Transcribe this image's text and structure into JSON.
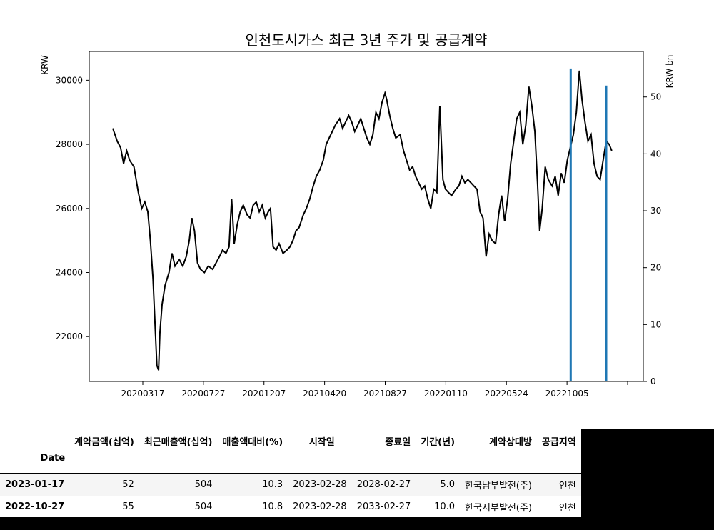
{
  "chart_data": {
    "type": "line",
    "title": "인천도시가스 최근 3년 주가 및 공급계약",
    "ylabel_left": "KRW",
    "ylabel_right": "KRW bn",
    "x_start": "20191202",
    "x_end": "20230306",
    "x_tick_labels": [
      "20200317",
      "20200727",
      "20201207",
      "20210420",
      "20210827",
      "20220110",
      "20220524",
      "20221005",
      ""
    ],
    "y_left_ticks": [
      "22000",
      "24000",
      "26000",
      "28000",
      "30000"
    ],
    "y_left_range": [
      20600,
      30900
    ],
    "y_right_ticks": [
      "0",
      "10",
      "20",
      "30",
      "40",
      "50"
    ],
    "y_right_range": [
      0,
      58
    ],
    "series": [
      {
        "color": "#000000",
        "axis": "left",
        "points": [
          [
            "20191202",
            28500
          ],
          [
            "20191212",
            28100
          ],
          [
            "20191220",
            27900
          ],
          [
            "20191227",
            27400
          ],
          [
            "20200103",
            27800
          ],
          [
            "20200110",
            27500
          ],
          [
            "20200120",
            27300
          ],
          [
            "20200130",
            26500
          ],
          [
            "20200207",
            26000
          ],
          [
            "20200214",
            26200
          ],
          [
            "20200221",
            25900
          ],
          [
            "20200227",
            25000
          ],
          [
            "20200304",
            23800
          ],
          [
            "20200310",
            22000
          ],
          [
            "20200313",
            21100
          ],
          [
            "20200317",
            20950
          ],
          [
            "20200320",
            22100
          ],
          [
            "20200325",
            23000
          ],
          [
            "20200401",
            23600
          ],
          [
            "20200410",
            24000
          ],
          [
            "20200417",
            24600
          ],
          [
            "20200424",
            24200
          ],
          [
            "20200504",
            24400
          ],
          [
            "20200512",
            24200
          ],
          [
            "20200520",
            24500
          ],
          [
            "20200527",
            25000
          ],
          [
            "20200602",
            25700
          ],
          [
            "20200608",
            25300
          ],
          [
            "20200615",
            24300
          ],
          [
            "20200622",
            24100
          ],
          [
            "20200701",
            24000
          ],
          [
            "20200710",
            24200
          ],
          [
            "20200720",
            24100
          ],
          [
            "20200728",
            24300
          ],
          [
            "20200805",
            24500
          ],
          [
            "20200812",
            24700
          ],
          [
            "20200820",
            24600
          ],
          [
            "20200827",
            24800
          ],
          [
            "20200902",
            26300
          ],
          [
            "20200908",
            24900
          ],
          [
            "20200915",
            25500
          ],
          [
            "20200922",
            25900
          ],
          [
            "20200929",
            26100
          ],
          [
            "20201008",
            25800
          ],
          [
            "20201015",
            25700
          ],
          [
            "20201022",
            26100
          ],
          [
            "20201029",
            26200
          ],
          [
            "20201105",
            25900
          ],
          [
            "20201112",
            26100
          ],
          [
            "20201119",
            25700
          ],
          [
            "20201126",
            25900
          ],
          [
            "20201201",
            26000
          ],
          [
            "20201207",
            24800
          ],
          [
            "20201214",
            24700
          ],
          [
            "20201221",
            24900
          ],
          [
            "20201230",
            24600
          ],
          [
            "20210108",
            24700
          ],
          [
            "20210115",
            24800
          ],
          [
            "20210122",
            25000
          ],
          [
            "20210129",
            25300
          ],
          [
            "20210205",
            25400
          ],
          [
            "20210215",
            25800
          ],
          [
            "20210222",
            26000
          ],
          [
            "20210302",
            26300
          ],
          [
            "20210310",
            26700
          ],
          [
            "20210317",
            27000
          ],
          [
            "20210325",
            27200
          ],
          [
            "20210402",
            27500
          ],
          [
            "20210409",
            28000
          ],
          [
            "20210416",
            28200
          ],
          [
            "20210423",
            28400
          ],
          [
            "20210430",
            28600
          ],
          [
            "20210510",
            28800
          ],
          [
            "20210517",
            28500
          ],
          [
            "20210524",
            28700
          ],
          [
            "20210531",
            28900
          ],
          [
            "20210607",
            28700
          ],
          [
            "20210614",
            28400
          ],
          [
            "20210621",
            28600
          ],
          [
            "20210628",
            28800
          ],
          [
            "20210705",
            28500
          ],
          [
            "20210712",
            28200
          ],
          [
            "20210719",
            28000
          ],
          [
            "20210726",
            28300
          ],
          [
            "20210802",
            29000
          ],
          [
            "20210809",
            28800
          ],
          [
            "20210816",
            29300
          ],
          [
            "20210823",
            29600
          ],
          [
            "20210827",
            29400
          ],
          [
            "20210903",
            28900
          ],
          [
            "20210910",
            28500
          ],
          [
            "20210917",
            28200
          ],
          [
            "20210927",
            28300
          ],
          [
            "20211005",
            27800
          ],
          [
            "20211012",
            27500
          ],
          [
            "20211019",
            27200
          ],
          [
            "20211026",
            27300
          ],
          [
            "20211102",
            27000
          ],
          [
            "20211109",
            26800
          ],
          [
            "20211116",
            26600
          ],
          [
            "20211123",
            26700
          ],
          [
            "20211130",
            26300
          ],
          [
            "20211207",
            26000
          ],
          [
            "20211214",
            26600
          ],
          [
            "20211221",
            26500
          ],
          [
            "20211228",
            29200
          ],
          [
            "20220104",
            26900
          ],
          [
            "20220110",
            26600
          ],
          [
            "20220117",
            26500
          ],
          [
            "20220124",
            26400
          ],
          [
            "20220203",
            26600
          ],
          [
            "20220210",
            26700
          ],
          [
            "20220217",
            27000
          ],
          [
            "20220224",
            26800
          ],
          [
            "20220303",
            26900
          ],
          [
            "20220310",
            26800
          ],
          [
            "20220317",
            26700
          ],
          [
            "20220324",
            26600
          ],
          [
            "20220331",
            25900
          ],
          [
            "20220407",
            25700
          ],
          [
            "20220414",
            24500
          ],
          [
            "20220421",
            25200
          ],
          [
            "20220428",
            25000
          ],
          [
            "20220506",
            24900
          ],
          [
            "20220513",
            25800
          ],
          [
            "20220520",
            26400
          ],
          [
            "20220527",
            25600
          ],
          [
            "20220603",
            26300
          ],
          [
            "20220610",
            27400
          ],
          [
            "20220617",
            28100
          ],
          [
            "20220624",
            28800
          ],
          [
            "20220701",
            29000
          ],
          [
            "20220708",
            28000
          ],
          [
            "20220715",
            28600
          ],
          [
            "20220722",
            29800
          ],
          [
            "20220729",
            29200
          ],
          [
            "20220805",
            28400
          ],
          [
            "20220811",
            26800
          ],
          [
            "20220816",
            25300
          ],
          [
            "20220822",
            26000
          ],
          [
            "20220829",
            27300
          ],
          [
            "20220905",
            26900
          ],
          [
            "20220914",
            26700
          ],
          [
            "20220921",
            27000
          ],
          [
            "20220928",
            26400
          ],
          [
            "20221005",
            27100
          ],
          [
            "20221012",
            26800
          ],
          [
            "20221019",
            27500
          ],
          [
            "20221026",
            27900
          ],
          [
            "20221102",
            28300
          ],
          [
            "20221109",
            29000
          ],
          [
            "20221116",
            30300
          ],
          [
            "20221122",
            29400
          ],
          [
            "20221129",
            28700
          ],
          [
            "20221206",
            28100
          ],
          [
            "20221213",
            28300
          ],
          [
            "20221220",
            27400
          ],
          [
            "20221227",
            27000
          ],
          [
            "20230103",
            26900
          ],
          [
            "20230110",
            27500
          ],
          [
            "20230117",
            28100
          ],
          [
            "20230124",
            28000
          ],
          [
            "20230130",
            27800
          ]
        ]
      },
      {
        "color": "#1f77b4",
        "axis": "right",
        "type": "bar",
        "points": [
          [
            "20221027",
            55
          ],
          [
            "20230117",
            52
          ]
        ]
      }
    ]
  },
  "table": {
    "columns": [
      "계약금액(십억)",
      "최근매출액(십억)",
      "매출액대비(%)",
      "시작일",
      "종료일",
      "기간(년)",
      "계약상대방",
      "공급지역"
    ],
    "index_name": "Date",
    "rows": [
      {
        "date": "2023-01-17",
        "cells": [
          "52",
          "504",
          "10.3",
          "2023-02-28",
          "2028-02-27",
          "5.0",
          "한국남부발전(주)",
          "인천"
        ]
      },
      {
        "date": "2022-10-27",
        "cells": [
          "55",
          "504",
          "10.8",
          "2023-02-28",
          "2033-02-27",
          "10.0",
          "한국서부발전(주)",
          "인천"
        ]
      }
    ]
  }
}
